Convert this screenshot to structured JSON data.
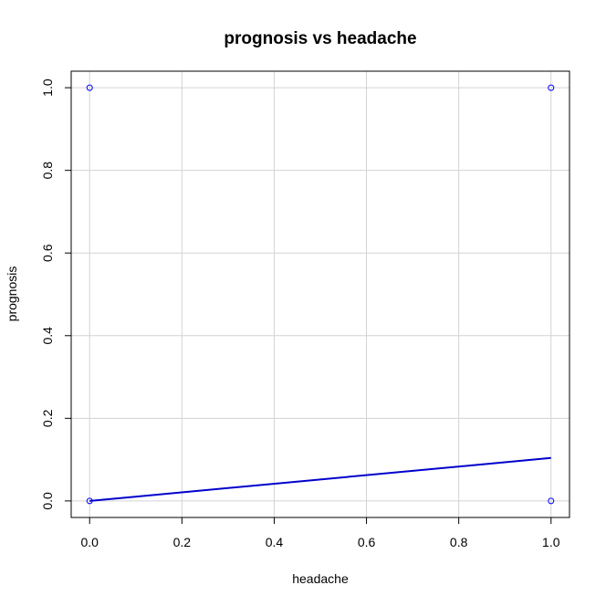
{
  "chart_data": {
    "type": "scatter",
    "title": "prognosis vs headache",
    "xlabel": "headache",
    "ylabel": "prognosis",
    "xlim": [
      -0.04,
      1.04
    ],
    "ylim": [
      -0.04,
      1.04
    ],
    "x_ticks": [
      "0.0",
      "0.2",
      "0.4",
      "0.6",
      "0.8",
      "1.0"
    ],
    "y_ticks": [
      "0.0",
      "0.2",
      "0.4",
      "0.6",
      "0.8",
      "1.0"
    ],
    "grid": true,
    "points": [
      {
        "x": 0,
        "y": 1
      },
      {
        "x": 1,
        "y": 1
      },
      {
        "x": 0,
        "y": 0
      },
      {
        "x": 1,
        "y": 0
      }
    ],
    "fit_line": {
      "x": [
        0,
        1
      ],
      "y": [
        0.0,
        0.104
      ]
    },
    "colors": {
      "points": "#0000ff",
      "line": "#0000cc",
      "grid": "#d3d3d3",
      "frame": "#000000"
    }
  }
}
